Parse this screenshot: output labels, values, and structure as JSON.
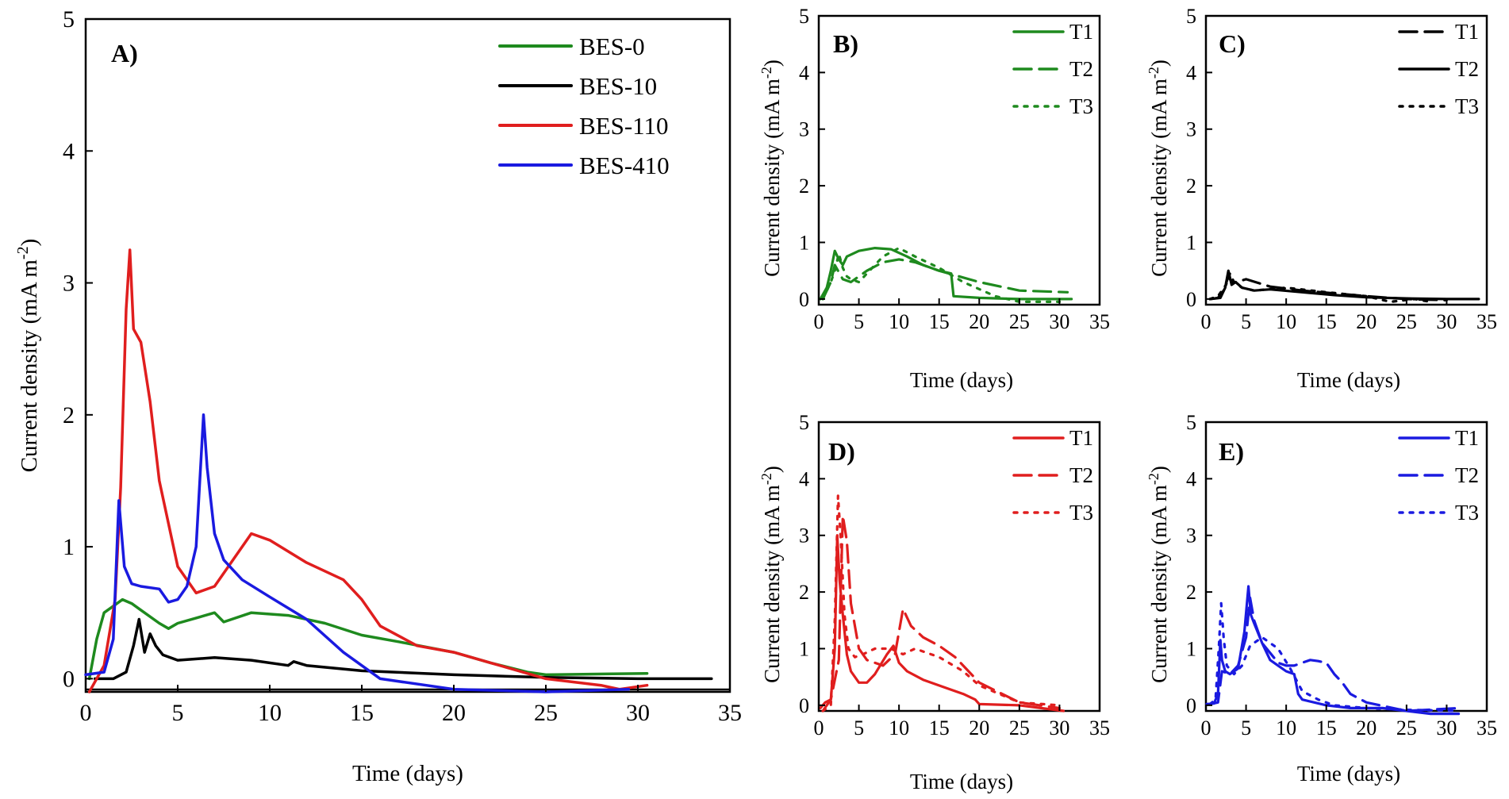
{
  "chart_data": [
    {
      "id": "A",
      "type": "line",
      "panel_label": "A)",
      "xlabel": "Time (days)",
      "ylabel_main": "Current density (mA m",
      "ylabel_sup": "-2",
      "ylabel_end": ")",
      "xlim": [
        0,
        35
      ],
      "ylim": [
        -0.1,
        5
      ],
      "xticks": [
        0,
        5,
        10,
        15,
        20,
        25,
        30,
        35
      ],
      "yticks": [
        0,
        1,
        2,
        3,
        4,
        5
      ],
      "x_tick_labels": [
        "0",
        "5",
        "10",
        "15",
        "20",
        "25",
        "30",
        "35"
      ],
      "y_tick_labels": [
        "0",
        "1",
        "2",
        "3",
        "4",
        "5"
      ],
      "legend_position": "top-right",
      "series": [
        {
          "name": "BES-0",
          "color": "#1e8a1e",
          "dash": "solid",
          "x": [
            0.2,
            0.6,
            1.0,
            1.5,
            2.0,
            2.5,
            3.0,
            4.0,
            4.5,
            5.0,
            6.0,
            7.0,
            7.5,
            9,
            11,
            13,
            15,
            17,
            20,
            22,
            24,
            25,
            30.5
          ],
          "y": [
            0.0,
            0.3,
            0.5,
            0.55,
            0.6,
            0.57,
            0.52,
            0.42,
            0.38,
            0.42,
            0.46,
            0.5,
            0.43,
            0.5,
            0.48,
            0.42,
            0.33,
            0.28,
            0.2,
            0.12,
            0.05,
            0.03,
            0.04
          ]
        },
        {
          "name": "BES-10",
          "color": "#000000",
          "dash": "solid",
          "x": [
            0.5,
            1.5,
            2.2,
            2.6,
            2.9,
            3.2,
            3.5,
            3.8,
            4.2,
            5,
            7,
            9,
            11,
            11.3,
            12,
            15,
            20,
            25,
            30,
            34
          ],
          "y": [
            0.0,
            0.0,
            0.05,
            0.25,
            0.45,
            0.2,
            0.34,
            0.25,
            0.18,
            0.14,
            0.16,
            0.14,
            0.1,
            0.13,
            0.1,
            0.06,
            0.03,
            0.01,
            0.0,
            0.0
          ]
        },
        {
          "name": "BES-110",
          "color": "#e01e1e",
          "dash": "solid",
          "x": [
            0.2,
            1.0,
            1.6,
            1.9,
            2.2,
            2.4,
            2.6,
            3.0,
            3.5,
            4.0,
            5.0,
            6.0,
            7.0,
            8.0,
            9.0,
            10.0,
            12,
            14,
            15,
            16,
            18,
            20,
            22,
            25,
            28,
            29,
            30.5
          ],
          "y": [
            -0.1,
            0.1,
            0.6,
            1.45,
            2.8,
            3.25,
            2.65,
            2.55,
            2.1,
            1.5,
            0.85,
            0.65,
            0.7,
            0.9,
            1.1,
            1.05,
            0.88,
            0.75,
            0.6,
            0.4,
            0.25,
            0.2,
            0.12,
            0.0,
            -0.05,
            -0.08,
            -0.05
          ]
        },
        {
          "name": "BES-410",
          "color": "#1a1ae0",
          "dash": "solid",
          "x": [
            0.0,
            1.0,
            1.5,
            1.8,
            2.1,
            2.5,
            3.0,
            4.0,
            4.5,
            5.0,
            5.5,
            6.0,
            6.4,
            6.6,
            7.0,
            7.5,
            8.5,
            10,
            12,
            14,
            16,
            20,
            25,
            29.5
          ],
          "y": [
            0.03,
            0.05,
            0.3,
            1.35,
            0.85,
            0.72,
            0.7,
            0.68,
            0.58,
            0.6,
            0.7,
            1.0,
            2.0,
            1.6,
            1.1,
            0.9,
            0.75,
            0.62,
            0.45,
            0.2,
            0.0,
            -0.08,
            -0.1,
            -0.08
          ]
        }
      ]
    },
    {
      "id": "B",
      "type": "line",
      "panel_label": "B)",
      "xlabel": "Time (days)",
      "ylabel_main": "Current density (mA m",
      "ylabel_sup": "-2",
      "ylabel_end": ")",
      "xlim": [
        0,
        35
      ],
      "ylim": [
        -0.1,
        5
      ],
      "xticks": [
        0,
        5,
        10,
        15,
        20,
        25,
        30,
        35
      ],
      "yticks": [
        0,
        1,
        2,
        3,
        4,
        5
      ],
      "x_tick_labels": [
        "0",
        "5",
        "10",
        "15",
        "20",
        "25",
        "30",
        "35"
      ],
      "y_tick_labels": [
        "0",
        "1",
        "2",
        "3",
        "4",
        "5"
      ],
      "legend_position": "top-right",
      "series": [
        {
          "name": "T1",
          "color": "#1e8a1e",
          "dash": "solid",
          "x": [
            0.2,
            1.0,
            1.5,
            2.0,
            2.5,
            3.0,
            3.5,
            5,
            7,
            9,
            11,
            13,
            15,
            16.5,
            16.8,
            20,
            25,
            31.5
          ],
          "y": [
            0.0,
            0.2,
            0.5,
            0.85,
            0.7,
            0.6,
            0.75,
            0.85,
            0.9,
            0.88,
            0.75,
            0.6,
            0.5,
            0.45,
            0.05,
            0.02,
            0.0,
            0.0
          ]
        },
        {
          "name": "T2",
          "color": "#1e8a1e",
          "dash": "dash",
          "x": [
            0.5,
            1.5,
            2.0,
            3.0,
            4.0,
            6.0,
            8.0,
            10,
            12,
            15,
            20,
            25,
            31
          ],
          "y": [
            0.0,
            0.3,
            0.6,
            0.35,
            0.3,
            0.5,
            0.65,
            0.7,
            0.65,
            0.5,
            0.3,
            0.15,
            0.12
          ]
        },
        {
          "name": "T3",
          "color": "#1e8a1e",
          "dash": "dot",
          "x": [
            0.5,
            1.5,
            2.0,
            2.5,
            3.0,
            3.5,
            4.0,
            5.0,
            6.0,
            8.0,
            10,
            12,
            15,
            18,
            22,
            25,
            30
          ],
          "y": [
            0.0,
            0.3,
            0.5,
            0.8,
            0.55,
            0.4,
            0.35,
            0.3,
            0.45,
            0.75,
            0.9,
            0.75,
            0.55,
            0.3,
            0.05,
            -0.05,
            -0.05
          ]
        }
      ]
    },
    {
      "id": "C",
      "type": "line",
      "panel_label": "C)",
      "xlabel": "Time (days)",
      "ylabel_main": "Current density (mA m",
      "ylabel_sup": "-2",
      "ylabel_end": ")",
      "xlim": [
        0,
        35
      ],
      "ylim": [
        -0.1,
        5
      ],
      "xticks": [
        0,
        5,
        10,
        15,
        20,
        25,
        30,
        35
      ],
      "yticks": [
        0,
        1,
        2,
        3,
        4,
        5
      ],
      "x_tick_labels": [
        "0",
        "5",
        "10",
        "15",
        "20",
        "25",
        "30",
        "35"
      ],
      "y_tick_labels": [
        "0",
        "1",
        "2",
        "3",
        "4",
        "5"
      ],
      "legend_position": "top-right",
      "series": [
        {
          "name": "T1",
          "color": "#000000",
          "dash": "dash",
          "x": [
            0.5,
            1.5,
            2.2,
            2.8,
            3.2,
            3.8,
            5,
            8,
            12,
            16,
            20,
            25,
            30
          ],
          "y": [
            0.0,
            0.02,
            0.15,
            0.4,
            0.3,
            0.3,
            0.35,
            0.22,
            0.15,
            0.1,
            0.05,
            0.0,
            -0.02
          ]
        },
        {
          "name": "T2",
          "color": "#000000",
          "dash": "solid",
          "x": [
            0.5,
            1.8,
            2.4,
            2.8,
            3.2,
            3.7,
            4.5,
            6,
            8,
            12,
            16,
            20,
            25,
            30,
            34
          ],
          "y": [
            0.0,
            0.02,
            0.2,
            0.5,
            0.25,
            0.3,
            0.2,
            0.15,
            0.17,
            0.12,
            0.07,
            0.03,
            0.01,
            0.0,
            0.0
          ]
        },
        {
          "name": "T3",
          "color": "#000000",
          "dash": "dot",
          "x": [
            0.5,
            1.5,
            2.5,
            3.0,
            3.5,
            4.5,
            6,
            10,
            15,
            20,
            23,
            26,
            28
          ],
          "y": [
            0.0,
            0.05,
            0.25,
            0.45,
            0.3,
            0.2,
            0.15,
            0.2,
            0.12,
            0.05,
            -0.05,
            0.0,
            -0.05
          ]
        }
      ]
    },
    {
      "id": "D",
      "type": "line",
      "panel_label": "D)",
      "xlabel": "Time (days)",
      "ylabel_main": "Current density (mA m",
      "ylabel_sup": "-2",
      "ylabel_end": ")",
      "xlim": [
        0,
        35
      ],
      "ylim": [
        -0.1,
        5
      ],
      "xticks": [
        0,
        5,
        10,
        15,
        20,
        25,
        30,
        35
      ],
      "yticks": [
        0,
        1,
        2,
        3,
        4,
        5
      ],
      "x_tick_labels": [
        "0",
        "5",
        "10",
        "15",
        "20",
        "25",
        "30",
        "35"
      ],
      "y_tick_labels": [
        "0",
        "1",
        "2",
        "3",
        "4",
        "5"
      ],
      "legend_position": "top-right",
      "series": [
        {
          "name": "T1",
          "color": "#e01e1e",
          "dash": "solid",
          "x": [
            0.2,
            0.8,
            1.5,
            2.0,
            2.3,
            2.6,
            3.0,
            3.5,
            4.0,
            5.0,
            6.0,
            7.0,
            8.5,
            9.3,
            10.0,
            11,
            13,
            16,
            18,
            19.5,
            20,
            25,
            30.5
          ],
          "y": [
            -0.05,
            0.05,
            0.1,
            1.0,
            3.0,
            2.2,
            1.6,
            0.9,
            0.6,
            0.4,
            0.4,
            0.55,
            0.9,
            1.05,
            0.75,
            0.6,
            0.45,
            0.3,
            0.2,
            0.1,
            0.02,
            0.0,
            -0.1
          ]
        },
        {
          "name": "T2",
          "color": "#e01e1e",
          "dash": "dash",
          "x": [
            0.5,
            1.5,
            2.5,
            3.0,
            3.5,
            4.0,
            5.0,
            6.0,
            8.0,
            9.5,
            10.5,
            11.5,
            13,
            15,
            17,
            20,
            25,
            30
          ],
          "y": [
            -0.1,
            0.1,
            0.8,
            3.35,
            2.9,
            1.8,
            1.0,
            0.8,
            0.7,
            0.9,
            1.7,
            1.4,
            1.2,
            1.05,
            0.85,
            0.4,
            0.05,
            -0.05
          ]
        },
        {
          "name": "T3",
          "color": "#e01e1e",
          "dash": "dot",
          "x": [
            0.5,
            1.5,
            2.0,
            2.4,
            2.8,
            3.2,
            3.7,
            4.5,
            5.5,
            7.0,
            9.0,
            10.5,
            12,
            15,
            18,
            20,
            25,
            30
          ],
          "y": [
            -0.1,
            0.0,
            1.5,
            3.7,
            2.8,
            1.6,
            1.0,
            0.85,
            0.9,
            1.0,
            1.0,
            0.9,
            1.0,
            0.85,
            0.6,
            0.35,
            0.05,
            0.0
          ]
        }
      ]
    },
    {
      "id": "E",
      "type": "line",
      "panel_label": "E)",
      "xlabel": "Time (days)",
      "ylabel_main": "Current density (mA m",
      "ylabel_sup": "-2",
      "ylabel_end": ")",
      "xlim": [
        0,
        35
      ],
      "ylim": [
        -0.1,
        5
      ],
      "xticks": [
        0,
        5,
        10,
        15,
        20,
        25,
        30,
        35
      ],
      "yticks": [
        0,
        1,
        2,
        3,
        4,
        5
      ],
      "x_tick_labels": [
        "0",
        "5",
        "10",
        "15",
        "20",
        "25",
        "30",
        "35"
      ],
      "y_tick_labels": [
        "0",
        "1",
        "2",
        "3",
        "4",
        "5"
      ],
      "legend_position": "top-right",
      "series": [
        {
          "name": "T1",
          "color": "#1a1ae0",
          "dash": "solid",
          "x": [
            0.1,
            1.0,
            1.5,
            1.8,
            2.0,
            2.4,
            3.0,
            4.0,
            4.8,
            5.3,
            5.6,
            6.0,
            7.0,
            8.0,
            9.0,
            10.0,
            11.0,
            11.5,
            12,
            15,
            18,
            22,
            25,
            28,
            31.5
          ],
          "y": [
            0.02,
            0.03,
            0.2,
            1.15,
            0.8,
            0.6,
            0.55,
            0.65,
            1.3,
            2.1,
            1.6,
            1.45,
            1.1,
            0.8,
            0.7,
            0.6,
            0.55,
            0.2,
            0.1,
            0.0,
            -0.05,
            -0.05,
            -0.1,
            -0.15,
            -0.15
          ]
        },
        {
          "name": "T2",
          "color": "#1a1ae0",
          "dash": "dash",
          "x": [
            0.5,
            1.5,
            2.0,
            3.0,
            4.0,
            5.0,
            5.5,
            6.0,
            7.0,
            9.0,
            10.0,
            11.0,
            12.0,
            13.0,
            14.0,
            15.0,
            16.0,
            17.0,
            18,
            20,
            25,
            31.5
          ],
          "y": [
            0.02,
            0.05,
            0.6,
            0.55,
            0.7,
            1.2,
            1.9,
            1.5,
            1.1,
            0.75,
            0.7,
            0.7,
            0.75,
            0.8,
            0.78,
            0.75,
            0.55,
            0.4,
            0.2,
            0.05,
            -0.1,
            -0.05
          ]
        },
        {
          "name": "T3",
          "color": "#1a1ae0",
          "dash": "dot",
          "x": [
            0.5,
            1.2,
            1.6,
            1.9,
            2.2,
            2.6,
            3.5,
            4.5,
            5.5,
            7.0,
            9.0,
            10.5,
            12.0,
            14,
            16,
            20,
            25,
            31.5
          ],
          "y": [
            0.02,
            0.1,
            1.0,
            1.8,
            1.2,
            0.7,
            0.55,
            0.7,
            1.05,
            1.2,
            1.0,
            0.65,
            0.25,
            0.1,
            0.0,
            -0.05,
            -0.08,
            -0.1
          ]
        }
      ]
    }
  ]
}
